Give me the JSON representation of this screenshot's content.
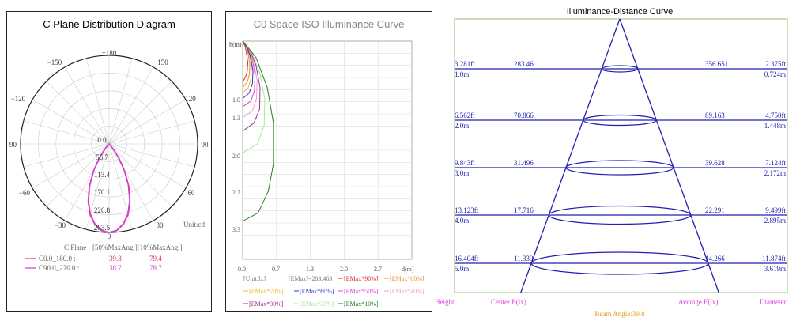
{
  "charts": [
    {
      "title": "C Plane Distribution Diagram",
      "angle_labels": {
        "top": "±180",
        "l150": "−150",
        "r150": "150",
        "l120": "−120",
        "r120": "120",
        "l90": "−90",
        "r90": "90",
        "l60": "−60",
        "r60": "60",
        "l30": "−30",
        "r30": "30",
        "bottom": "0"
      },
      "radial_labels": [
        "0.0",
        "56.7",
        "113.4",
        "170.1",
        "226.8",
        "283.5"
      ],
      "unit": "Unit:cd",
      "legend": {
        "header_left": "C Plane",
        "header_right": "[50%MaxAng.][10%MaxAng.]",
        "rows": [
          {
            "name": "C0.0_180.0 :",
            "v50": "39.8",
            "v10": "79.4",
            "color": "#e0306a"
          },
          {
            "name": "C90.0_270.0 :",
            "v50": "38.7",
            "v10": "78.7",
            "color": "#d63ad6"
          }
        ]
      }
    },
    {
      "title": "C0 Space ISO Illuminance Curve",
      "y_axis_label": "h(m)",
      "y_ticks": [
        "1.0",
        "1.3",
        "2.0",
        "2.7",
        "3.3"
      ],
      "x_ticks": [
        "0.0",
        "0.7",
        "1.3",
        "2.0",
        "2.7"
      ],
      "x_axis_label": "d(m)",
      "legend": [
        {
          "text": "[Unit:lx]",
          "color": "#777777"
        },
        {
          "text": "[EMax]=283.463",
          "color": "#777777"
        },
        {
          "text": "[EMax*90%]",
          "color": "#e02828"
        },
        {
          "text": "[EMax*80%]",
          "color": "#f08a28"
        },
        {
          "text": "[EMax*70%]",
          "color": "#e8c028"
        },
        {
          "text": "[EMax*60%]",
          "color": "#3030c8"
        },
        {
          "text": "[EMax*50%]",
          "color": "#e040c8"
        },
        {
          "text": "[EMax*40%]",
          "color": "#f0a0c8"
        },
        {
          "text": "[EMax*30%]",
          "color": "#a03090"
        },
        {
          "text": "[EMax*20%]",
          "color": "#a8e8a0"
        },
        {
          "text": "[EMax*10%]",
          "color": "#208020"
        }
      ]
    },
    {
      "title": "Illuminance-Distance Curve",
      "rows": [
        {
          "h_ft": "3.281ft",
          "h_m": "1.0m",
          "center": "283.46",
          "avg": "356.651",
          "d_ft": "2.375ft",
          "d_m": "0.724m"
        },
        {
          "h_ft": "6.562ft",
          "h_m": "2.0m",
          "center": "70.866",
          "avg": "89.163",
          "d_ft": "4.750ft",
          "d_m": "1.448m"
        },
        {
          "h_ft": "9.843ft",
          "h_m": "3.0m",
          "center": "31.496",
          "avg": "39.628",
          "d_ft": "7.124ft",
          "d_m": "2.172m"
        },
        {
          "h_ft": "13.123ft",
          "h_m": "4.0m",
          "center": "17.716",
          "avg": "22.291",
          "d_ft": "9.499ft",
          "d_m": "2.895m"
        },
        {
          "h_ft": "16.404ft",
          "h_m": "5.0m",
          "center": "11.339",
          "avg": "14.266",
          "d_ft": "11.874ft",
          "d_m": "3.619m"
        }
      ],
      "footer": {
        "height": "Height",
        "center": "Center E(lx)",
        "average": "Average E(lx)",
        "diameter": "Diameter",
        "beam": "Beam Angle:39.8"
      }
    }
  ],
  "chart_data": [
    {
      "type": "polar",
      "title": "C Plane Distribution Diagram",
      "radial_ticks": [
        0.0,
        56.7,
        113.4,
        170.1,
        226.8,
        283.5
      ],
      "unit": "cd",
      "series": [
        {
          "name": "C0.0_180.0",
          "color": "#e0306a",
          "angles": [
            0,
            5,
            10,
            15,
            20,
            25,
            30,
            35,
            40
          ],
          "values": [
            283.5,
            279,
            262,
            235,
            196,
            150,
            100,
            55,
            20
          ]
        },
        {
          "name": "C90.0_270.0",
          "color": "#d63ad6",
          "angles": [
            0,
            5,
            10,
            15,
            20,
            25,
            30,
            35,
            40
          ],
          "values": [
            283.5,
            278,
            260,
            232,
            193,
            146,
            96,
            52,
            18
          ]
        }
      ]
    },
    {
      "type": "line",
      "title": "C0 Space ISO Illuminance Curve",
      "xlabel": "d(m)",
      "ylabel": "h(m)",
      "xlim": [
        0,
        3.3
      ],
      "ylim": [
        0,
        4.0
      ],
      "series": [
        {
          "name": "[EMax*90%]",
          "color": "#e02828",
          "x": [
            0,
            0.05,
            0.08,
            0.1,
            0.09,
            0.06,
            0
          ],
          "y": [
            0,
            0.1,
            0.25,
            0.4,
            0.55,
            0.65,
            0.75
          ]
        },
        {
          "name": "[EMax*80%]",
          "color": "#f08a28",
          "x": [
            0,
            0.07,
            0.11,
            0.14,
            0.13,
            0.09,
            0
          ],
          "y": [
            0,
            0.1,
            0.25,
            0.45,
            0.62,
            0.75,
            0.85
          ]
        },
        {
          "name": "[EMax*70%]",
          "color": "#e8c028",
          "x": [
            0,
            0.08,
            0.14,
            0.17,
            0.16,
            0.11,
            0
          ],
          "y": [
            0,
            0.1,
            0.3,
            0.5,
            0.7,
            0.85,
            0.95
          ]
        },
        {
          "name": "[EMax*60%]",
          "color": "#3030c8",
          "x": [
            0,
            0.09,
            0.16,
            0.2,
            0.19,
            0.13,
            0
          ],
          "y": [
            0,
            0.12,
            0.32,
            0.55,
            0.78,
            0.95,
            1.05
          ]
        },
        {
          "name": "[EMax*50%]",
          "color": "#e040c8",
          "x": [
            0,
            0.1,
            0.19,
            0.24,
            0.23,
            0.16,
            0
          ],
          "y": [
            0,
            0.12,
            0.35,
            0.62,
            0.9,
            1.1,
            1.2
          ]
        },
        {
          "name": "[EMax*40%]",
          "color": "#f0a0c8",
          "x": [
            0,
            0.12,
            0.22,
            0.28,
            0.27,
            0.19,
            0
          ],
          "y": [
            0,
            0.14,
            0.4,
            0.72,
            1.05,
            1.28,
            1.4
          ]
        },
        {
          "name": "[EMax*30%]",
          "color": "#a03090",
          "x": [
            0,
            0.14,
            0.26,
            0.34,
            0.33,
            0.22,
            0
          ],
          "y": [
            0,
            0.16,
            0.45,
            0.85,
            1.25,
            1.5,
            1.65
          ]
        },
        {
          "name": "[EMax*20%]",
          "color": "#a8e8a0",
          "x": [
            0,
            0.18,
            0.34,
            0.43,
            0.42,
            0.29,
            0
          ],
          "y": [
            0,
            0.2,
            0.6,
            1.05,
            1.55,
            1.88,
            2.05
          ]
        },
        {
          "name": "[EMax*10%]",
          "color": "#208020",
          "x": [
            0,
            0.26,
            0.48,
            0.6,
            0.6,
            0.5,
            0.3,
            0
          ],
          "y": [
            0,
            0.3,
            0.85,
            1.5,
            2.25,
            2.75,
            3.15,
            3.3
          ]
        }
      ]
    },
    {
      "type": "table",
      "title": "Illuminance-Distance Curve",
      "beam_angle": 39.8,
      "heights_m": [
        1.0,
        2.0,
        3.0,
        4.0,
        5.0
      ],
      "center_lx": [
        283.46,
        70.866,
        31.496,
        17.716,
        11.339
      ],
      "average_lx": [
        356.651,
        89.163,
        39.628,
        22.291,
        14.266
      ],
      "diameter_m": [
        0.724,
        1.448,
        2.172,
        2.895,
        3.619
      ]
    }
  ]
}
